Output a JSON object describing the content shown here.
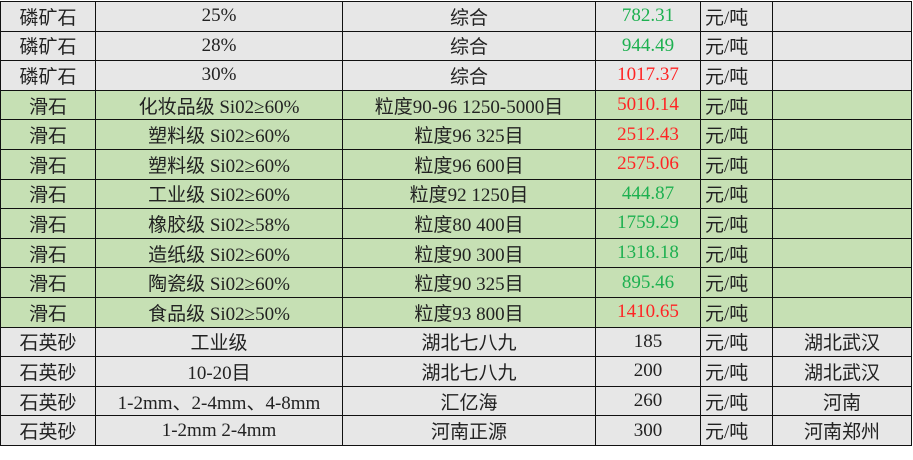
{
  "colors": {
    "gray_row": "#e7e7e7",
    "green_row": "#c6e0b4",
    "price_up": "#ff2424",
    "price_down": "#1db050"
  },
  "rows": [
    {
      "group": "gray",
      "name": "磷矿石",
      "spec": "25%",
      "detail": "综合",
      "price": "782.31",
      "trend": "down",
      "unit": "元/吨",
      "region": ""
    },
    {
      "group": "gray",
      "name": "磷矿石",
      "spec": "28%",
      "detail": "综合",
      "price": "944.49",
      "trend": "down",
      "unit": "元/吨",
      "region": ""
    },
    {
      "group": "gray",
      "name": "磷矿石",
      "spec": "30%",
      "detail": "综合",
      "price": "1017.37",
      "trend": "up",
      "unit": "元/吨",
      "region": ""
    },
    {
      "group": "green",
      "name": "滑石",
      "spec": "化妆品级 Si02≥60%",
      "detail": "粒度90-96 1250-5000目",
      "price": "5010.14",
      "trend": "up",
      "unit": "元/吨",
      "region": ""
    },
    {
      "group": "green",
      "name": "滑石",
      "spec": "塑料级 Si02≥60%",
      "detail": "粒度96 325目",
      "price": "2512.43",
      "trend": "up",
      "unit": "元/吨",
      "region": ""
    },
    {
      "group": "green",
      "name": "滑石",
      "spec": "塑料级 Si02≥60%",
      "detail": "粒度96 600目",
      "price": "2575.06",
      "trend": "up",
      "unit": "元/吨",
      "region": ""
    },
    {
      "group": "green",
      "name": "滑石",
      "spec": "工业级 Si02≥60%",
      "detail": "粒度92 1250目",
      "price": "444.87",
      "trend": "down",
      "unit": "元/吨",
      "region": ""
    },
    {
      "group": "green",
      "name": "滑石",
      "spec": "橡胶级 Si02≥58%",
      "detail": "粒度80 400目",
      "price": "1759.29",
      "trend": "down",
      "unit": "元/吨",
      "region": ""
    },
    {
      "group": "green",
      "name": "滑石",
      "spec": "造纸级 Si02≥60%",
      "detail": "粒度90 300目",
      "price": "1318.18",
      "trend": "down",
      "unit": "元/吨",
      "region": ""
    },
    {
      "group": "green",
      "name": "滑石",
      "spec": "陶瓷级 Si02≥60%",
      "detail": "粒度90 325目",
      "price": "895.46",
      "trend": "down",
      "unit": "元/吨",
      "region": ""
    },
    {
      "group": "green",
      "name": "滑石",
      "spec": "食品级 Si02≥50%",
      "detail": "粒度93 800目",
      "price": "1410.65",
      "trend": "up",
      "unit": "元/吨",
      "region": ""
    },
    {
      "group": "gray",
      "name": "石英砂",
      "spec": "工业级",
      "detail": "湖北七八九",
      "price": "185",
      "trend": "",
      "unit": "元/吨",
      "region": "湖北武汉"
    },
    {
      "group": "gray",
      "name": "石英砂",
      "spec": "10-20目",
      "detail": "湖北七八九",
      "price": "200",
      "trend": "",
      "unit": "元/吨",
      "region": "湖北武汉"
    },
    {
      "group": "gray",
      "name": "石英砂",
      "spec": "1-2mm、2-4mm、4-8mm",
      "detail": "汇亿海",
      "price": "260",
      "trend": "",
      "unit": "元/吨",
      "region": "河南"
    },
    {
      "group": "gray",
      "name": "石英砂",
      "spec": "1-2mm 2-4mm",
      "detail": "河南正源",
      "price": "300",
      "trend": "",
      "unit": "元/吨",
      "region": "河南郑州"
    }
  ]
}
